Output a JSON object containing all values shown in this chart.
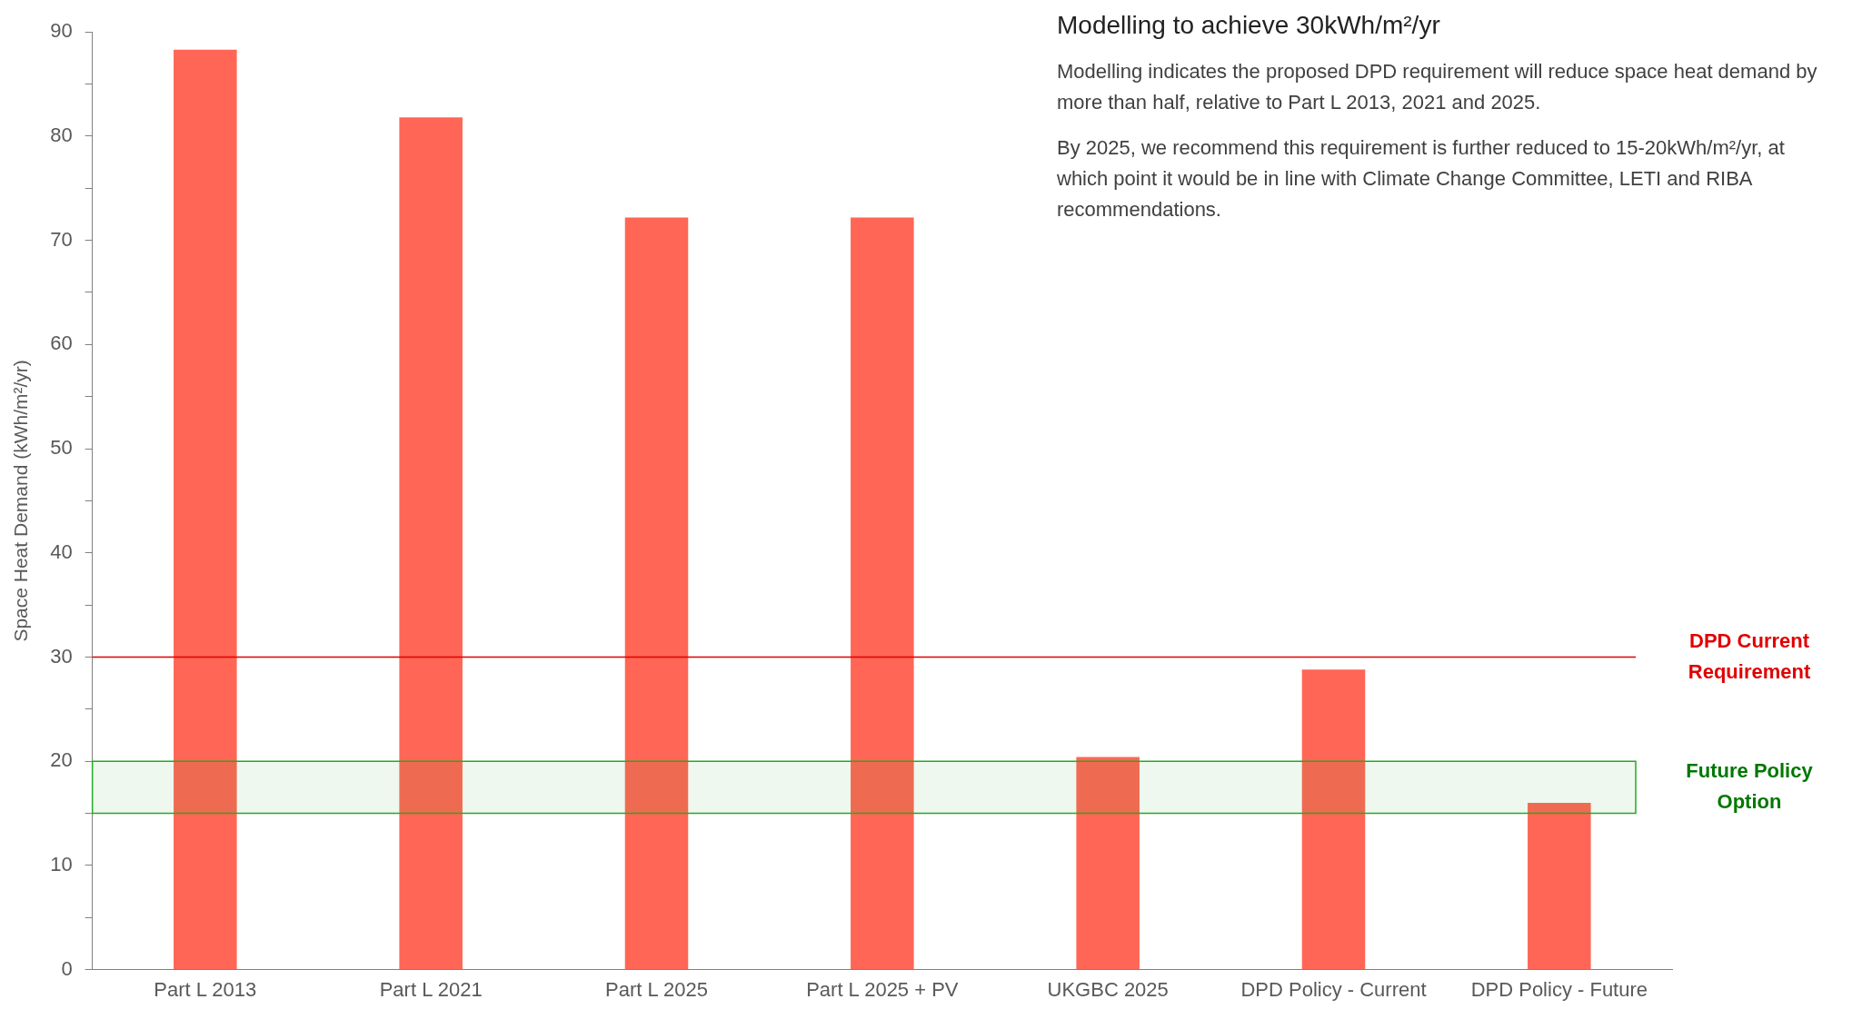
{
  "chart_data": {
    "type": "bar",
    "title": "Modelling to achieve 30kWh/m²/yr",
    "annotations": [
      "Modelling indicates the proposed DPD requirement will reduce space heat demand by more than half, relative to Part L 2013, 2021 and 2025.",
      "By 2025, we recommend this requirement is further reduced to 15-20kWh/m²/yr, at which point it would be in line with Climate Change Committee, LETI and RIBA recommendations."
    ],
    "ylabel": "Space Heat Demand (kWh/m²/yr)",
    "categories": [
      "Part L 2013",
      "Part L 2021",
      "Part L 2025",
      "Part L 2025 + PV",
      "UKGBC 2025",
      "DPD Policy - Current",
      "DPD Policy - Future"
    ],
    "values": [
      88.3,
      81.8,
      72.2,
      72.2,
      20.4,
      28.8,
      16
    ],
    "color": "#ff6655",
    "ylim": [
      0,
      90
    ],
    "yticks": [
      0,
      {
        "value": 5,
        "label": null
      },
      10,
      {
        "value": 15,
        "label": null
      },
      20,
      {
        "value": 25,
        "label": null
      },
      30,
      {
        "value": 35,
        "label": null
      },
      40,
      {
        "value": 45,
        "label": null
      },
      50,
      {
        "value": 55,
        "label": null
      },
      60,
      {
        "value": 65,
        "label": null
      },
      70,
      {
        "value": 75,
        "label": null
      },
      80,
      {
        "value": 85,
        "label": null
      },
      90
    ],
    "grid": false,
    "legend": false,
    "ref_lines": [
      {
        "axis": "y",
        "value": 30,
        "label": "DPD Current Requirement",
        "color": "#e00000"
      }
    ],
    "bands": [
      {
        "axis": "y",
        "from": 15,
        "to": 20,
        "label": "Future Policy Option",
        "color": "#22aa22"
      }
    ]
  }
}
